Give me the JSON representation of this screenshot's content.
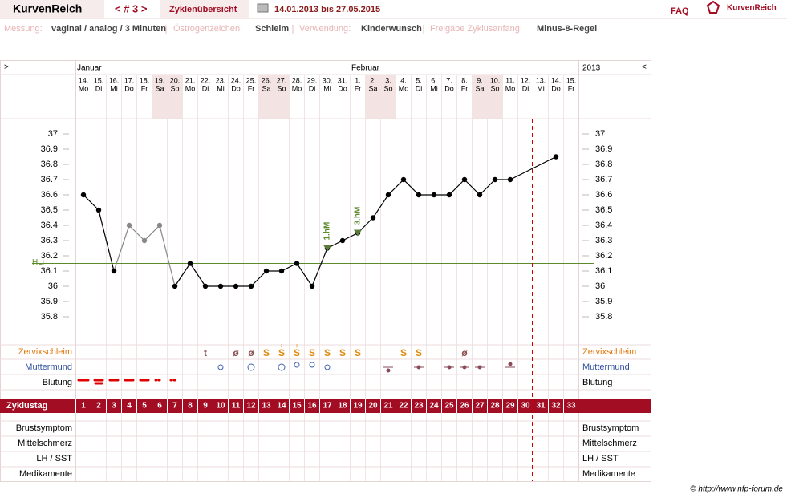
{
  "header": {
    "brand": "KurvenReich",
    "cycle_nav": "< # 3 >",
    "tab": "Zyklenübersicht",
    "range": "14.01.2013 bis 27.05.2015",
    "faq": "FAQ",
    "logo": "KurvenReich"
  },
  "settings": [
    {
      "label": "Messung:",
      "value": "vaginal / analog / 3 Minuten"
    },
    {
      "label": "Östrogenzeichen:",
      "value": "Schleim"
    },
    {
      "label": "Verwendung:",
      "value": "Kinderwunsch"
    },
    {
      "label": "Freigabe Zyklusanfang:",
      "value": "Minus-8-Regel"
    }
  ],
  "chart_data": {
    "type": "line",
    "nav_left": ">",
    "nav_right": "<",
    "year": "2013",
    "months": [
      {
        "label": "Januar",
        "day": 1
      },
      {
        "label": "Februar",
        "day": 19
      }
    ],
    "dates": [
      "14.",
      "15.",
      "16.",
      "17.",
      "18.",
      "19.",
      "20.",
      "21.",
      "22.",
      "23.",
      "24.",
      "25.",
      "26.",
      "27.",
      "28.",
      "29.",
      "30.",
      "31.",
      "1.",
      "2.",
      "3.",
      "4.",
      "5.",
      "6.",
      "7.",
      "8.",
      "9.",
      "10.",
      "11.",
      "12.",
      "13.",
      "14.",
      "15."
    ],
    "weekdays": [
      "Mo",
      "Di",
      "Mi",
      "Do",
      "Fr",
      "Sa",
      "So",
      "Mo",
      "Di",
      "Mi",
      "Do",
      "Fr",
      "Sa",
      "So",
      "Mo",
      "Di",
      "Mi",
      "Do",
      "Fr",
      "Sa",
      "So",
      "Mo",
      "Di",
      "Mi",
      "Do",
      "Fr",
      "Sa",
      "So",
      "Mo",
      "Di",
      "Mi",
      "Do",
      "Fr"
    ],
    "cycle_label": "Zyklustag",
    "categories": [
      1,
      2,
      3,
      4,
      5,
      6,
      7,
      8,
      9,
      10,
      11,
      12,
      13,
      14,
      15,
      16,
      17,
      18,
      19,
      20,
      21,
      22,
      23,
      24,
      25,
      26,
      27,
      28,
      29,
      30,
      31,
      32,
      33
    ],
    "series": [
      {
        "name": "Temperatur",
        "color": "#000000",
        "x": [
          1,
          2,
          3,
          4,
          5,
          6,
          7,
          8,
          9,
          10,
          11,
          12,
          13,
          14,
          15,
          16,
          17,
          18,
          19,
          20,
          21,
          22,
          23,
          24,
          25,
          26,
          27,
          28,
          29,
          32
        ],
        "values": [
          36.6,
          36.5,
          36.1,
          36.4,
          36.3,
          36.4,
          36,
          36.15,
          36,
          36,
          36,
          36,
          36.1,
          36.1,
          36.15,
          36,
          36.25,
          36.3,
          36.35,
          36.45,
          36.6,
          36.7,
          36.6,
          36.6,
          36.6,
          36.7,
          36.6,
          36.7,
          36.7,
          36.85
        ],
        "point_colors": [
          "#000",
          "#000",
          "#000",
          "#888",
          "#888",
          "#888",
          "#000",
          "#000",
          "#000",
          "#000",
          "#000",
          "#000",
          "#000",
          "#000",
          "#000",
          "#000",
          "#000",
          "#000",
          "#000",
          "#000",
          "#000",
          "#000",
          "#000",
          "#000",
          "#000",
          "#000",
          "#000",
          "#000",
          "#000",
          "#000"
        ]
      }
    ],
    "ylim": [
      35.8,
      37
    ],
    "yticks": [
      35.8,
      35.9,
      36,
      36.1,
      36.2,
      36.3,
      36.4,
      36.5,
      36.6,
      36.7,
      36.8,
      36.9,
      37
    ],
    "hli": {
      "label": "HLi",
      "value": 36.15,
      "color": "#5a8a2a"
    },
    "annotations": [
      {
        "text": "1.hM",
        "day": 17,
        "value": 36.25
      },
      {
        "text": "3.hM",
        "day": 19,
        "value": 36.35
      }
    ],
    "cervix_label": "Zervixschleim",
    "cervix": [
      null,
      null,
      null,
      null,
      null,
      null,
      null,
      null,
      "t",
      null,
      "ø",
      "ø",
      "S",
      "S",
      "S",
      "S",
      "S",
      "S",
      "S",
      null,
      null,
      "S",
      "S",
      null,
      null,
      "ø",
      null,
      null,
      null,
      null,
      null,
      null,
      null
    ],
    "cervix_super": [
      null,
      null,
      null,
      null,
      null,
      null,
      null,
      null,
      null,
      null,
      null,
      null,
      null,
      "+",
      "+",
      null,
      null,
      null,
      null,
      null,
      null,
      null,
      null,
      null,
      null,
      null,
      null,
      null,
      null,
      null,
      null,
      null,
      null
    ],
    "row_labels": [
      "Muttermund",
      "Blutung"
    ],
    "bottom_rows": [
      "Brustsymptom",
      "Mittelschmerz",
      "LH / SST",
      "Medikamente"
    ],
    "footer": "© http://www.nfp-forum.de"
  }
}
